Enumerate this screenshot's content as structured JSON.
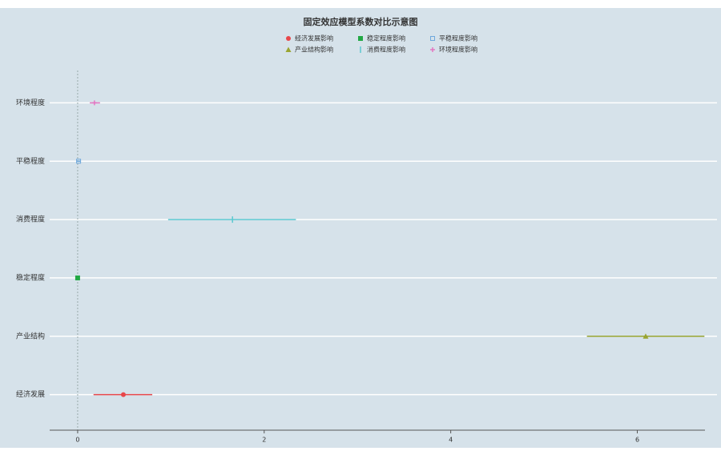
{
  "chart_data": {
    "type": "errorbar",
    "title": "固定效应模型系数对比示意图",
    "categories": [
      "环境程度",
      "平稳程度",
      "消费程度",
      "稳定程度",
      "产业结构",
      "经济发展"
    ],
    "series": [
      {
        "name": "经济发展影响",
        "color": "#e8474a",
        "marker": "circle",
        "values": [
          null,
          null,
          null,
          null,
          null,
          0.49
        ],
        "lower": [
          null,
          null,
          null,
          null,
          null,
          0.17
        ],
        "upper": [
          null,
          null,
          null,
          null,
          null,
          0.8
        ]
      },
      {
        "name": "稳定程度影响",
        "color": "#22a844",
        "marker": "square",
        "values": [
          null,
          null,
          null,
          0.0,
          null,
          null
        ],
        "lower": [
          null,
          null,
          null,
          -0.02,
          null,
          null
        ],
        "upper": [
          null,
          null,
          null,
          0.02,
          null,
          null
        ]
      },
      {
        "name": "平稳程度影响",
        "color": "#6fa8dc",
        "marker": "square-open",
        "values": [
          null,
          0.01,
          null,
          null,
          null,
          null
        ],
        "lower": [
          null,
          -0.01,
          null,
          null,
          null,
          null
        ],
        "upper": [
          null,
          0.03,
          null,
          null,
          null,
          null
        ]
      },
      {
        "name": "产业结构影响",
        "color": "#9aa531",
        "marker": "triangle",
        "values": [
          null,
          null,
          null,
          null,
          6.09,
          null
        ],
        "lower": [
          null,
          null,
          null,
          null,
          5.46,
          null
        ],
        "upper": [
          null,
          null,
          null,
          null,
          6.72,
          null
        ]
      },
      {
        "name": "消费程度影响",
        "color": "#5bc8d0",
        "marker": "vline",
        "values": [
          null,
          null,
          1.66,
          null,
          null,
          null
        ],
        "lower": [
          null,
          null,
          0.97,
          null,
          null,
          null
        ],
        "upper": [
          null,
          null,
          2.34,
          null,
          null,
          null
        ]
      },
      {
        "name": "环境程度影响",
        "color": "#e377c2",
        "marker": "plus",
        "values": [
          0.18,
          null,
          null,
          null,
          null,
          null
        ],
        "lower": [
          0.13,
          null,
          null,
          null,
          null,
          null
        ],
        "upper": [
          0.24,
          null,
          null,
          null,
          null,
          null
        ]
      }
    ],
    "xlim": [
      -0.3,
      6.7
    ],
    "xticks": [
      0,
      2,
      4,
      6
    ],
    "grid": true,
    "legend": "top"
  }
}
